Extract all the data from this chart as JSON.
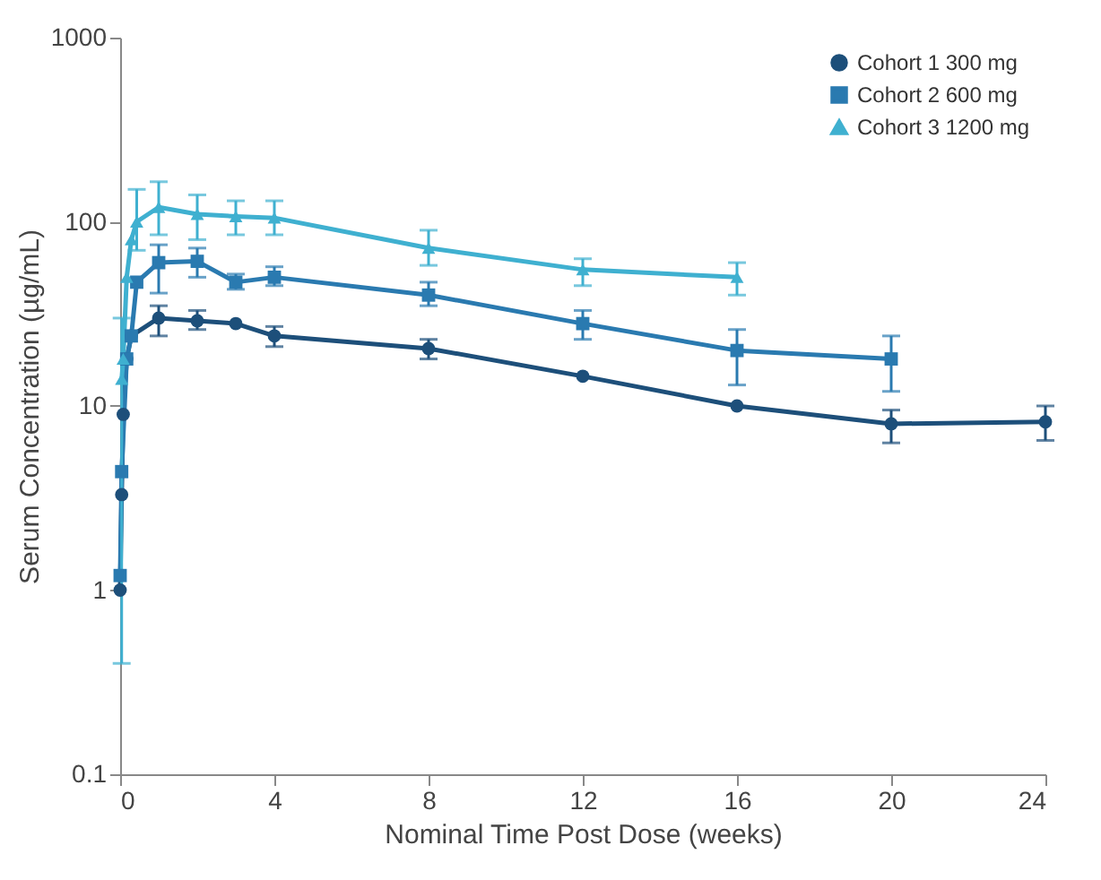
{
  "chart_data": {
    "type": "line",
    "xlabel": "Nominal Time Post Dose (weeks)",
    "ylabel": "Serum Concentration (µg/mL)",
    "log": "y",
    "xlim": [
      0,
      24
    ],
    "xticks": [
      0,
      4,
      8,
      12,
      16,
      20,
      24
    ],
    "ylim": [
      0.1,
      1000
    ],
    "yticks": [
      0.1,
      1,
      10,
      100,
      1000
    ],
    "grid": false,
    "legend": "top right",
    "series": [
      {
        "name": "Cohort 1 300 mg",
        "color": "#1d4f7a",
        "marker": "circle",
        "x": [
          0,
          0.04,
          0.08,
          0.17,
          0.29,
          1,
          2,
          3,
          4,
          8,
          12,
          16,
          20,
          24
        ],
        "values": [
          1.0,
          3.3,
          9,
          18,
          24,
          30,
          29,
          28,
          24,
          20.5,
          14.5,
          10,
          8,
          8.2
        ],
        "errors": [
          null,
          null,
          null,
          null,
          null,
          [
            24,
            35
          ],
          [
            26,
            33
          ],
          null,
          [
            21,
            27
          ],
          [
            18,
            23
          ],
          null,
          null,
          [
            6.3,
            9.5
          ],
          [
            6.5,
            10
          ]
        ]
      },
      {
        "name": "Cohort 2 600 mg",
        "color": "#2a7ab0",
        "marker": "square",
        "x": [
          0,
          0.04,
          0.17,
          0.29,
          0.43,
          1,
          2,
          3,
          4,
          8,
          12,
          16,
          20
        ],
        "values": [
          1.2,
          4.4,
          18,
          24,
          47,
          60,
          61,
          47,
          50,
          40,
          28,
          20,
          18
        ],
        "errors": [
          null,
          null,
          null,
          null,
          null,
          [
            41,
            75
          ],
          [
            50,
            72
          ],
          [
            43,
            52
          ],
          [
            45,
            57
          ],
          [
            35,
            47
          ],
          [
            23,
            33
          ],
          [
            13,
            26
          ],
          [
            12,
            24
          ]
        ]
      },
      {
        "name": "Cohort 3 1200 mg",
        "color": "#3fb0d0",
        "marker": "triangle",
        "x": [
          0.04,
          0.08,
          0.17,
          0.29,
          0.43,
          1,
          2,
          3,
          4,
          8,
          12,
          16
        ],
        "values": [
          14,
          18,
          50,
          80,
          100,
          120,
          110,
          107,
          105,
          72,
          55,
          50
        ],
        "errors": [
          [
            0.4,
            30
          ],
          null,
          null,
          null,
          [
            70,
            150
          ],
          [
            85,
            165
          ],
          [
            80,
            140
          ],
          [
            85,
            130
          ],
          [
            85,
            130
          ],
          [
            58,
            90
          ],
          [
            45,
            63
          ],
          [
            40,
            60
          ]
        ]
      }
    ]
  }
}
